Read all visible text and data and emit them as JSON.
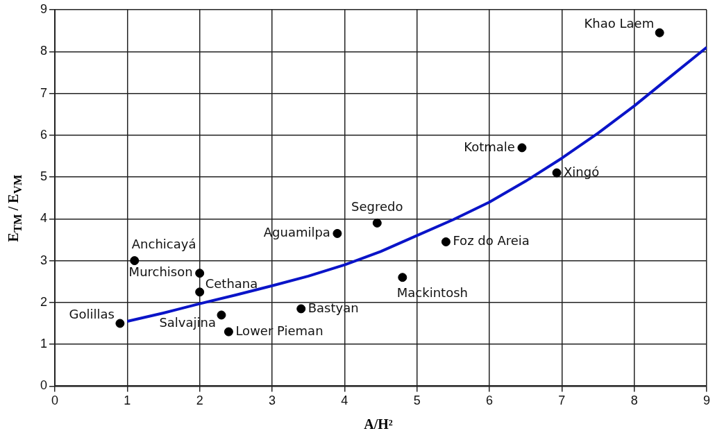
{
  "chart_data": {
    "type": "scatter",
    "xlabel": "A/H²",
    "ylabel": "E$_{TM}$ / E$_{VM}$",
    "xlim": [
      0,
      9
    ],
    "xticks": [
      0,
      1,
      2,
      3,
      4,
      5,
      6,
      7,
      8,
      9
    ],
    "ylim": [
      0,
      9
    ],
    "yticks": [
      0,
      1,
      2,
      3,
      4,
      5,
      6,
      7,
      8,
      9
    ],
    "grid": true,
    "marker": "circle",
    "series": [
      {
        "name": "Golillas",
        "color": "#000000",
        "x": [
          0.9
        ],
        "values": [
          1.5
        ]
      },
      {
        "name": "Anchicayá",
        "color": "#000000",
        "x": [
          1.1
        ],
        "values": [
          3.0
        ]
      },
      {
        "name": "Murchison",
        "color": "#000000",
        "x": [
          2.0
        ],
        "values": [
          2.7
        ]
      },
      {
        "name": "Cethana",
        "color": "#000000",
        "x": [
          2.0
        ],
        "values": [
          2.25
        ]
      },
      {
        "name": "Salvajina",
        "color": "#000000",
        "x": [
          2.3
        ],
        "values": [
          1.7
        ]
      },
      {
        "name": "Lower Pieman",
        "color": "#000000",
        "x": [
          2.4
        ],
        "values": [
          1.3
        ]
      },
      {
        "name": "Bastyan",
        "color": "#000000",
        "x": [
          3.4
        ],
        "values": [
          1.85
        ]
      },
      {
        "name": "Aguamilpa",
        "color": "#000000",
        "x": [
          3.9
        ],
        "values": [
          3.65
        ]
      },
      {
        "name": "Segredo",
        "color": "#000000",
        "x": [
          4.45
        ],
        "values": [
          3.9
        ]
      },
      {
        "name": "Mackintosh",
        "color": "#000000",
        "x": [
          4.8
        ],
        "values": [
          2.6
        ]
      },
      {
        "name": "Foz do Areia",
        "color": "#000000",
        "x": [
          5.4
        ],
        "values": [
          3.45
        ]
      },
      {
        "name": "Kotmale",
        "color": "#000000",
        "x": [
          6.45
        ],
        "values": [
          5.7
        ]
      },
      {
        "name": "Xingó",
        "color": "#000000",
        "x": [
          6.93
        ],
        "values": [
          5.1
        ]
      },
      {
        "name": "Khao Laem",
        "color": "#000000",
        "x": [
          8.35
        ],
        "values": [
          8.45
        ]
      },
      {
        "type": "line",
        "color": "#0a14c8",
        "marker": "none",
        "line_style": "solid",
        "x": [
          1,
          1.5,
          2,
          2.5,
          3,
          3.5,
          4,
          4.5,
          5,
          5.5,
          6,
          6.5,
          7,
          7.5,
          8,
          8.5,
          9
        ],
        "values": [
          1.55,
          1.75,
          1.97,
          2.18,
          2.4,
          2.63,
          2.9,
          3.22,
          3.6,
          3.98,
          4.4,
          4.9,
          5.45,
          6.05,
          6.7,
          7.4,
          8.1
        ]
      }
    ]
  }
}
